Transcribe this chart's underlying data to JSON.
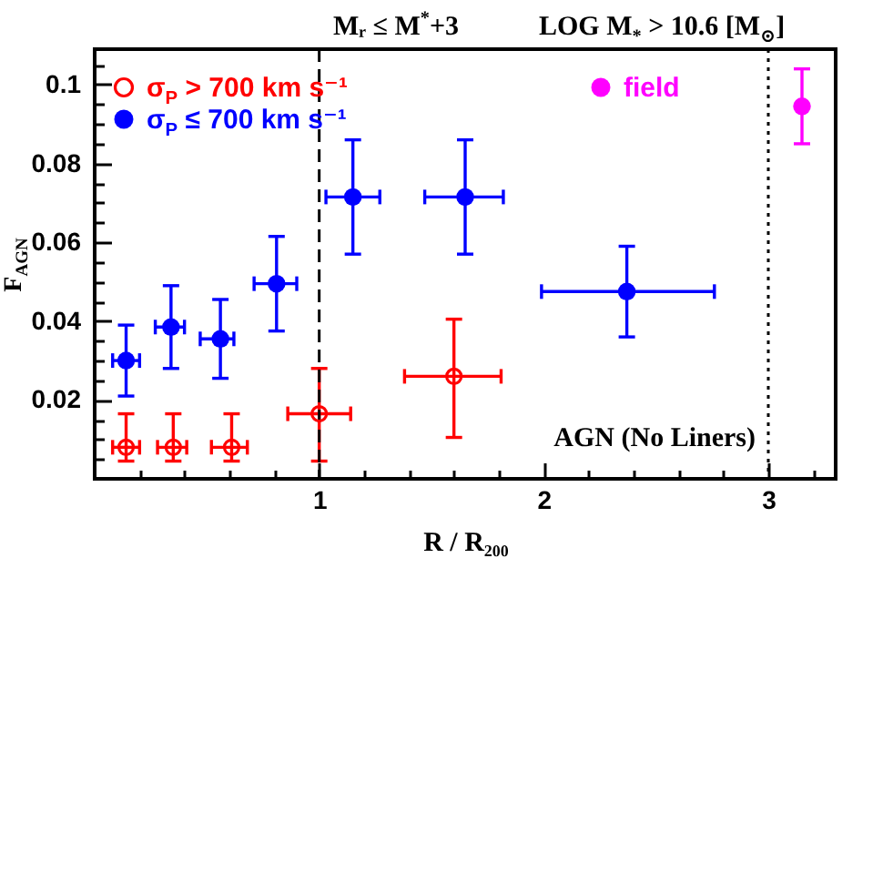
{
  "chart_data": {
    "type": "scatter",
    "title": "Mᵣ ≤ M$^{*}$+3",
    "subtitle": "LOG M$_{*}$ > 10.6 [M$_{⊙}$]",
    "xlabel": "R / R₂₀₀",
    "ylabel": "F$_{AGN}$",
    "annotations": [
      "AGN (No Liners)"
    ],
    "series": [
      {
        "name": "σ$_{P}$ > 700 km s⁻¹",
        "color": "#ff0000",
        "x": [
          0.14,
          0.35,
          0.61,
          1.0,
          1.6
        ],
        "values": [
          0.008,
          0.008,
          0.008,
          0.0165,
          0.026
        ],
        "errors": [
          [
            0.0045,
            0.0165
          ],
          [
            0.0045,
            0.0165
          ],
          [
            0.0045,
            0.0165
          ],
          [
            0.0045,
            0.028
          ],
          [
            0.0105,
            0.0405
          ]
        ],
        "xerrors": [
          [
            0.08,
            0.2
          ],
          [
            0.28,
            0.41
          ],
          [
            0.52,
            0.68
          ],
          [
            0.86,
            1.14
          ],
          [
            1.38,
            1.81
          ]
        ]
      },
      {
        "name": "σ$_{P}$ ≤ 700 km s⁻¹",
        "color": "#0000ff",
        "x": [
          0.14,
          0.34,
          0.56,
          0.81,
          1.15,
          1.65,
          2.37
        ],
        "values": [
          0.03,
          0.0385,
          0.0355,
          0.0495,
          0.0715,
          0.0715,
          0.0475
        ],
        "errors": [
          [
            0.021,
            0.039
          ],
          [
            0.028,
            0.049
          ],
          [
            0.0255,
            0.0455
          ],
          [
            0.0375,
            0.0615
          ],
          [
            0.057,
            0.086
          ],
          [
            0.057,
            0.086
          ],
          [
            0.036,
            0.059
          ]
        ],
        "xerrors": [
          [
            0.08,
            0.2
          ],
          [
            0.27,
            0.4
          ],
          [
            0.47,
            0.62
          ],
          [
            0.71,
            0.9
          ],
          [
            1.03,
            1.27
          ],
          [
            1.47,
            1.82
          ],
          [
            1.99,
            2.76
          ]
        ]
      },
      {
        "name": "field",
        "color": "#ff00ff",
        "x": [
          3.15
        ],
        "values": [
          0.0945
        ],
        "errors": [
          [
            0.085,
            0.104
          ]
        ]
      }
    ],
    "xlim": [
      0,
      3.3
    ],
    "xticks": [
      {
        "value": 0.2,
        "label": null
      },
      {
        "value": 0.4,
        "label": null
      },
      {
        "value": 0.6,
        "label": null
      },
      {
        "value": 0.8,
        "label": null
      },
      1,
      {
        "value": 1.2,
        "label": null
      },
      {
        "value": 1.4,
        "label": null
      },
      {
        "value": 1.6,
        "label": null
      },
      {
        "value": 1.8,
        "label": null
      },
      2,
      {
        "value": 2.2,
        "label": null
      },
      {
        "value": 2.4,
        "label": null
      },
      {
        "value": 2.6,
        "label": null
      },
      {
        "value": 2.8,
        "label": null
      },
      3,
      {
        "value": 3.2,
        "label": null
      }
    ],
    "ylim": [
      0,
      0.109
    ],
    "yticks": [
      {
        "value": 0.005,
        "label": null
      },
      {
        "value": 0.01,
        "label": null
      },
      {
        "value": 0.015,
        "label": null
      },
      0.02,
      {
        "value": 0.025,
        "label": null
      },
      {
        "value": 0.03,
        "label": null
      },
      {
        "value": 0.035,
        "label": null
      },
      0.04,
      {
        "value": 0.045,
        "label": null
      },
      {
        "value": 0.05,
        "label": null
      },
      {
        "value": 0.055,
        "label": null
      },
      0.06,
      {
        "value": 0.065,
        "label": null
      },
      {
        "value": 0.07,
        "label": null
      },
      {
        "value": 0.075,
        "label": null
      },
      0.08,
      {
        "value": 0.085,
        "label": null
      },
      {
        "value": 0.09,
        "label": null
      },
      {
        "value": 0.095,
        "label": null
      },
      0.1,
      {
        "value": 0.105,
        "label": null
      }
    ],
    "ref_lines": [
      {
        "axis": "x",
        "value": 1,
        "line_style": "dashed",
        "color": "#000000"
      },
      {
        "axis": "x",
        "value": 3,
        "line_style": "dotted",
        "color": "#000000"
      }
    ],
    "legend": "top left",
    "marker": "circle"
  }
}
